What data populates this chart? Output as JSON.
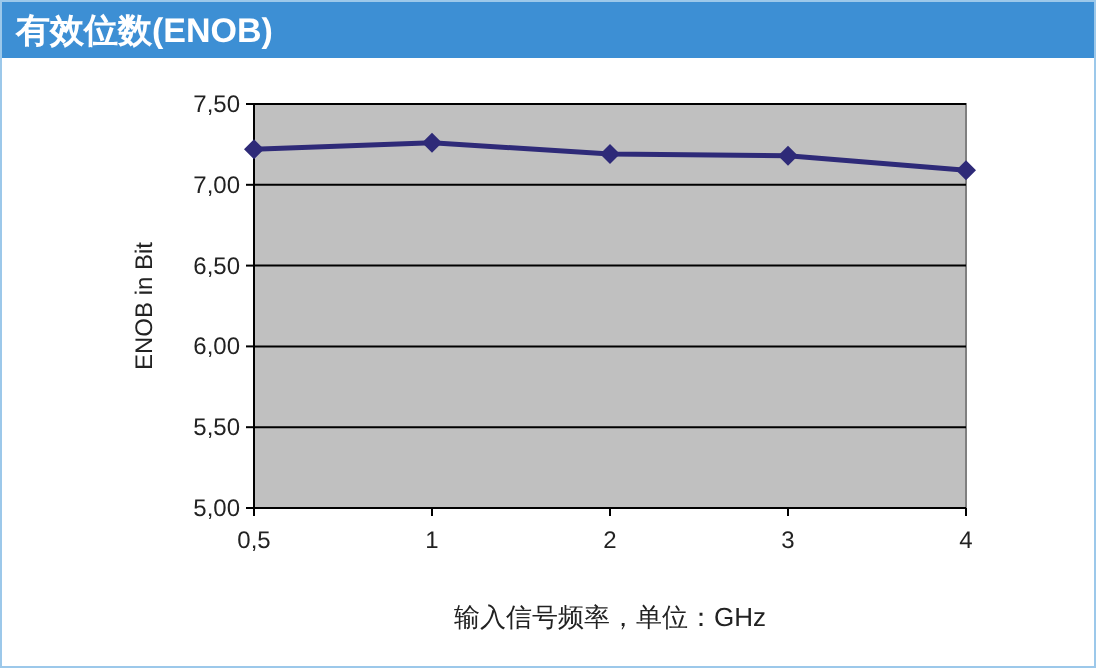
{
  "chart_data": {
    "type": "line",
    "title": "有效位数(ENOB)",
    "xlabel": "输入信号频率，单位：GHz",
    "ylabel": "ENOB in Bit",
    "categories": [
      "0,5",
      "1",
      "2",
      "3",
      "4"
    ],
    "series": [
      {
        "color": "#2e2a78",
        "values": [
          7.22,
          7.26,
          7.19,
          7.18,
          7.09
        ]
      }
    ],
    "ylim": [
      5,
      7.5
    ],
    "yticks": [
      {
        "value": 5,
        "label": "5,00"
      },
      {
        "value": 5.5,
        "label": "5,50"
      },
      {
        "value": 6,
        "label": "6,00"
      },
      {
        "value": 6.5,
        "label": "6,50"
      },
      {
        "value": 7,
        "label": "7,00"
      },
      {
        "value": 7.5,
        "label": "7,50"
      }
    ],
    "grid": "y",
    "marker": "diamond",
    "line_style": "solid"
  }
}
